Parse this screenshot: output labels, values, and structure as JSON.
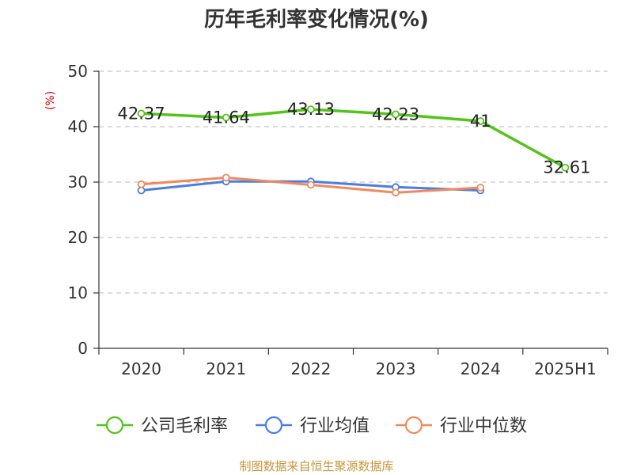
{
  "chart_data": {
    "type": "line",
    "title": "历年毛利率变化情况(%)",
    "ylabel": "(%)",
    "xlabel": "",
    "ylim": [
      0,
      50
    ],
    "yticks": [
      0,
      10,
      20,
      30,
      40,
      50
    ],
    "grid": true,
    "legend_position": "bottom",
    "categories": [
      "2020",
      "2021",
      "2022",
      "2023",
      "2024",
      "2025H1"
    ],
    "series": [
      {
        "name": "公司毛利率",
        "color": "#52c41a",
        "values": [
          42.37,
          41.64,
          43.13,
          42.23,
          41,
          32.61
        ],
        "labels": [
          "42.37",
          "41.64",
          "43.13",
          "42.23",
          "41",
          "32.61"
        ]
      },
      {
        "name": "行业均值",
        "color": "#4a7ee0",
        "values": [
          28.5,
          30.1,
          30.1,
          29.1,
          28.5,
          null
        ]
      },
      {
        "name": "行业中位数",
        "color": "#f08a5d",
        "values": [
          29.6,
          30.8,
          29.5,
          28.1,
          29.0,
          null
        ]
      }
    ]
  },
  "source": "制图数据来自恒生聚源数据库"
}
